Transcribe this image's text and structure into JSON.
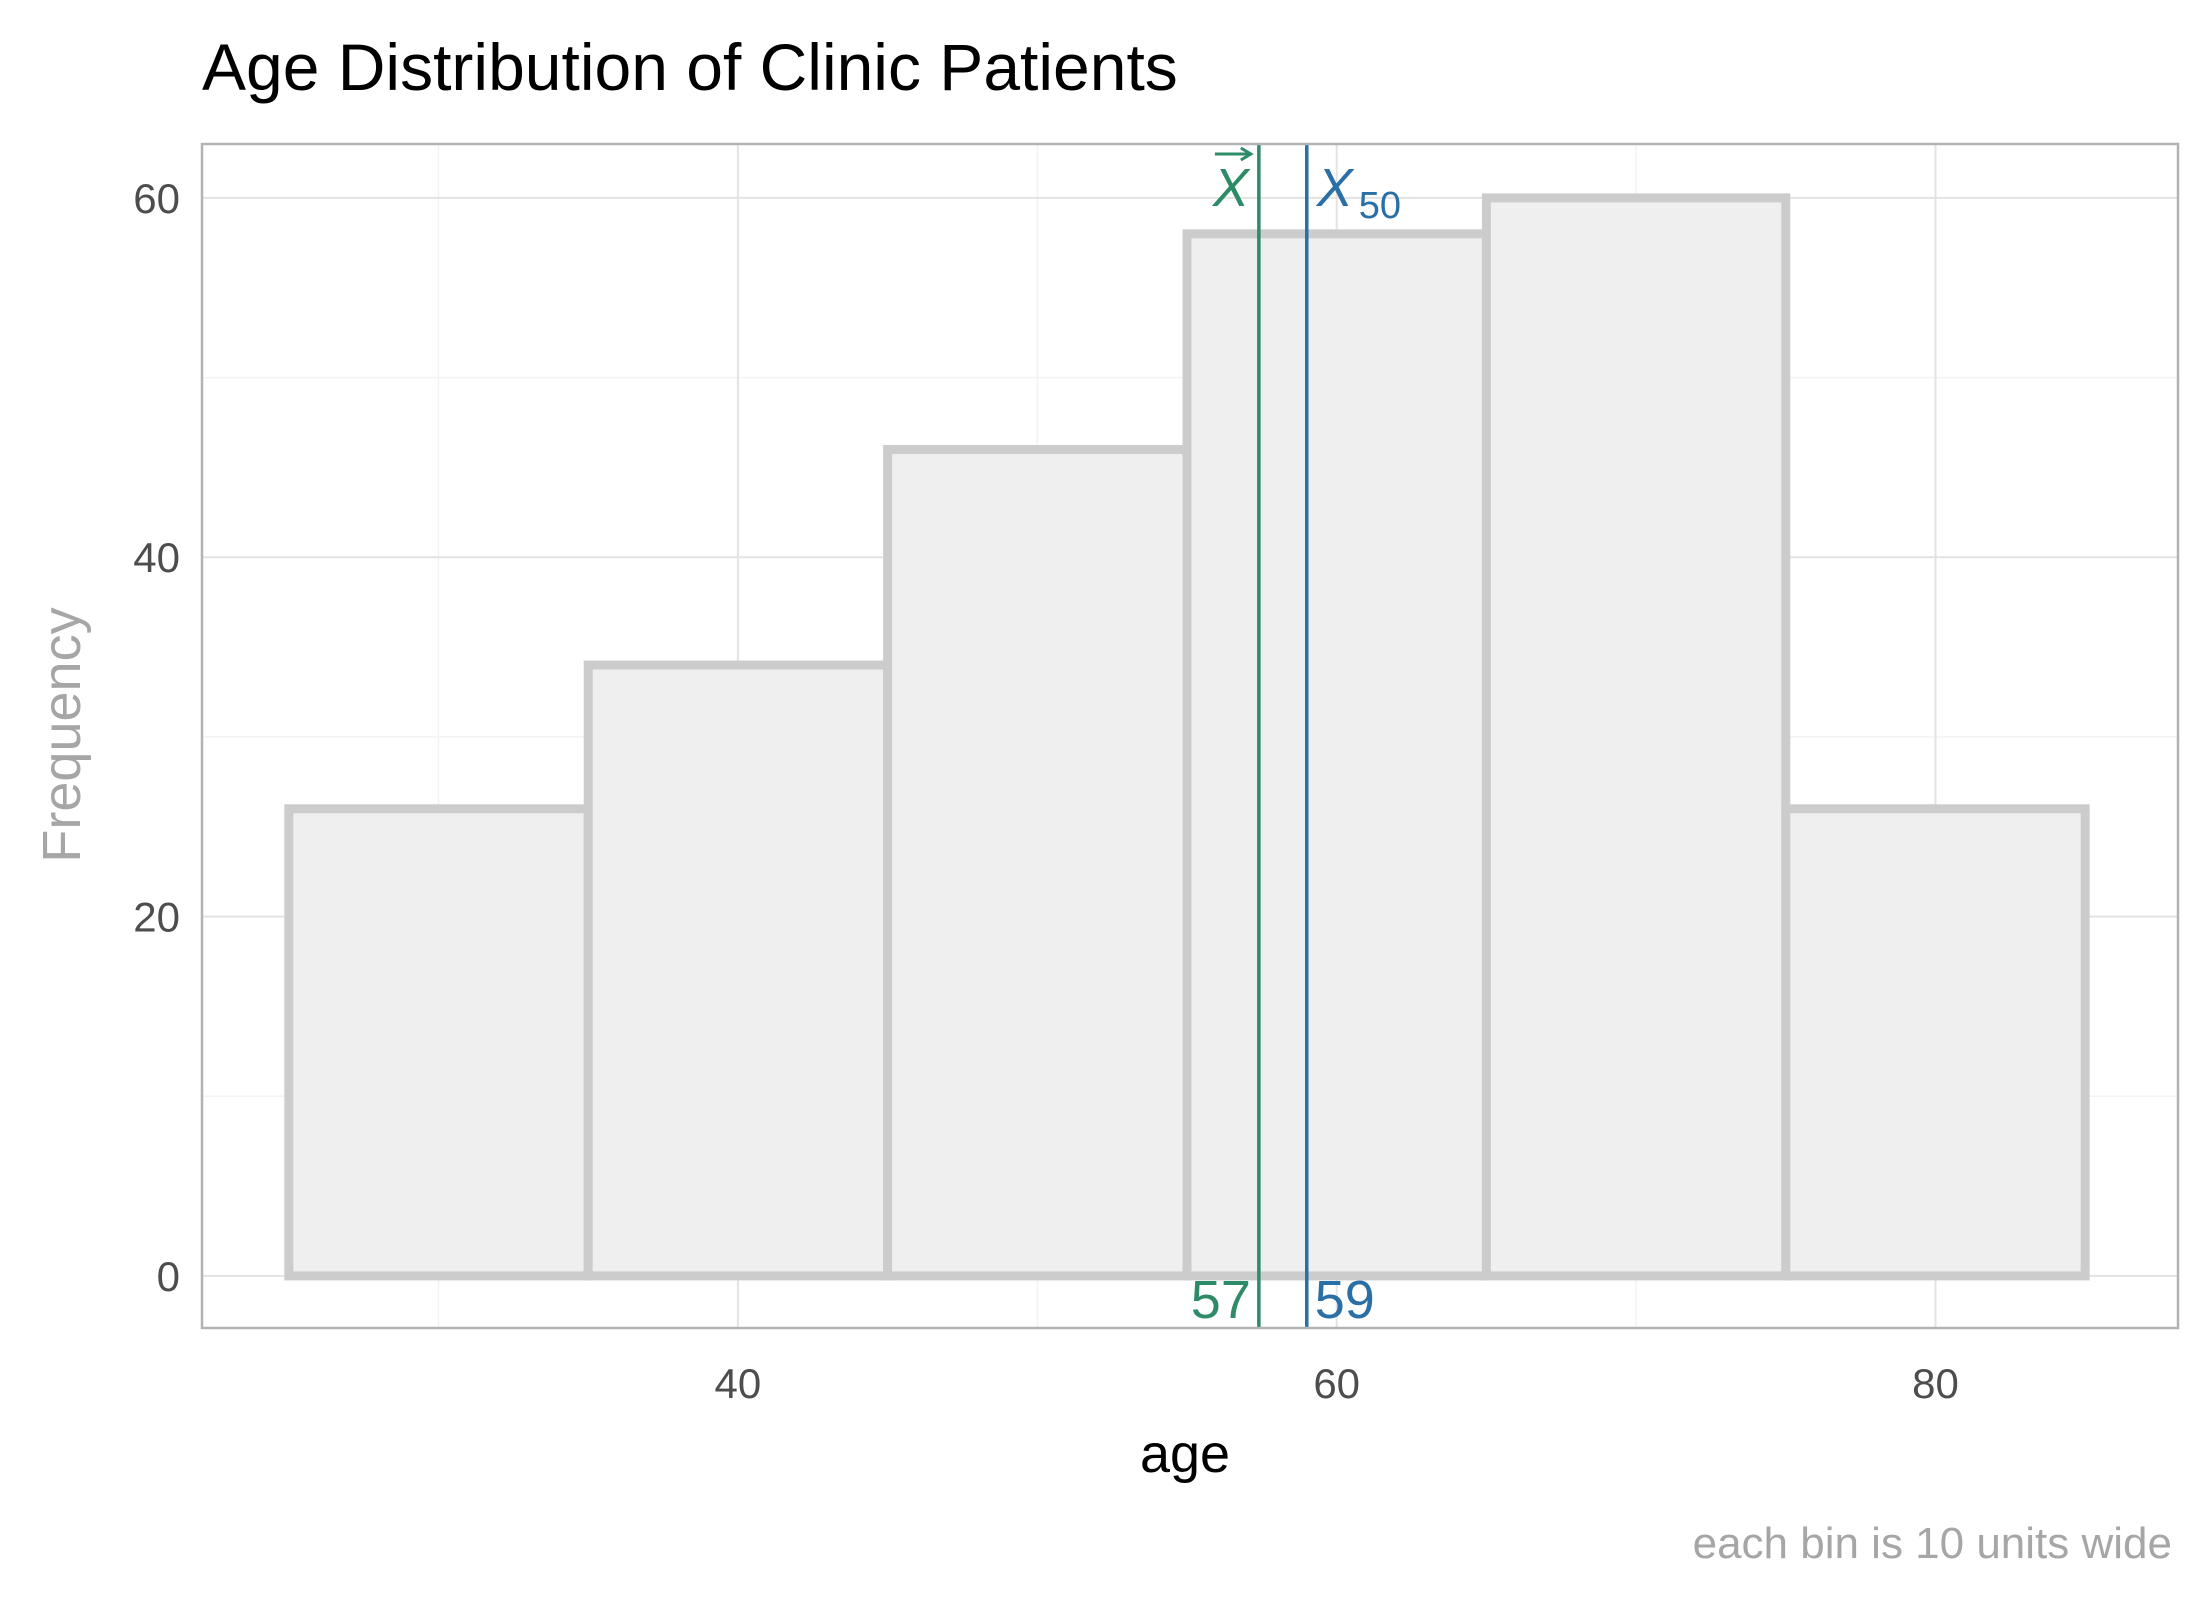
{
  "chart_data": {
    "type": "bar",
    "title": "Age Distribution of Clinic Patients",
    "xlabel": "age",
    "ylabel": "Frequency",
    "caption": "each bin is 10 units wide",
    "bin_width": 10,
    "bins": [
      {
        "start": 25,
        "end": 35,
        "count": 26
      },
      {
        "start": 35,
        "end": 45,
        "count": 34
      },
      {
        "start": 45,
        "end": 55,
        "count": 46
      },
      {
        "start": 55,
        "end": 65,
        "count": 58
      },
      {
        "start": 65,
        "end": 75,
        "count": 60
      },
      {
        "start": 75,
        "end": 85,
        "count": 26
      }
    ],
    "xlim": [
      22.1,
      88.1
    ],
    "ylim": [
      -2.9,
      63
    ],
    "x_major_ticks": [
      40,
      60,
      80
    ],
    "x_minor_ticks": [
      30,
      50,
      70
    ],
    "y_major_ticks": [
      0,
      20,
      40,
      60
    ],
    "y_minor_ticks": [
      10,
      30,
      50
    ],
    "x_tick_labels": [
      "40",
      "60",
      "80"
    ],
    "y_tick_labels": [
      "0",
      "20",
      "40",
      "60"
    ],
    "grid": true,
    "reference_lines": [
      {
        "name": "mean",
        "symbol": "X",
        "value": 57.4,
        "label": "57",
        "color": "#2e8b67",
        "position": "left"
      },
      {
        "name": "median",
        "symbol": "X",
        "subscript": "50",
        "value": 59,
        "label": "59",
        "color": "#2a6fa6",
        "position": "right"
      }
    ],
    "colors": {
      "bar_fill": "#efefef",
      "bar_outline": "#cccccc",
      "mean": "#2e8b67",
      "median": "#2a6fa6"
    }
  }
}
